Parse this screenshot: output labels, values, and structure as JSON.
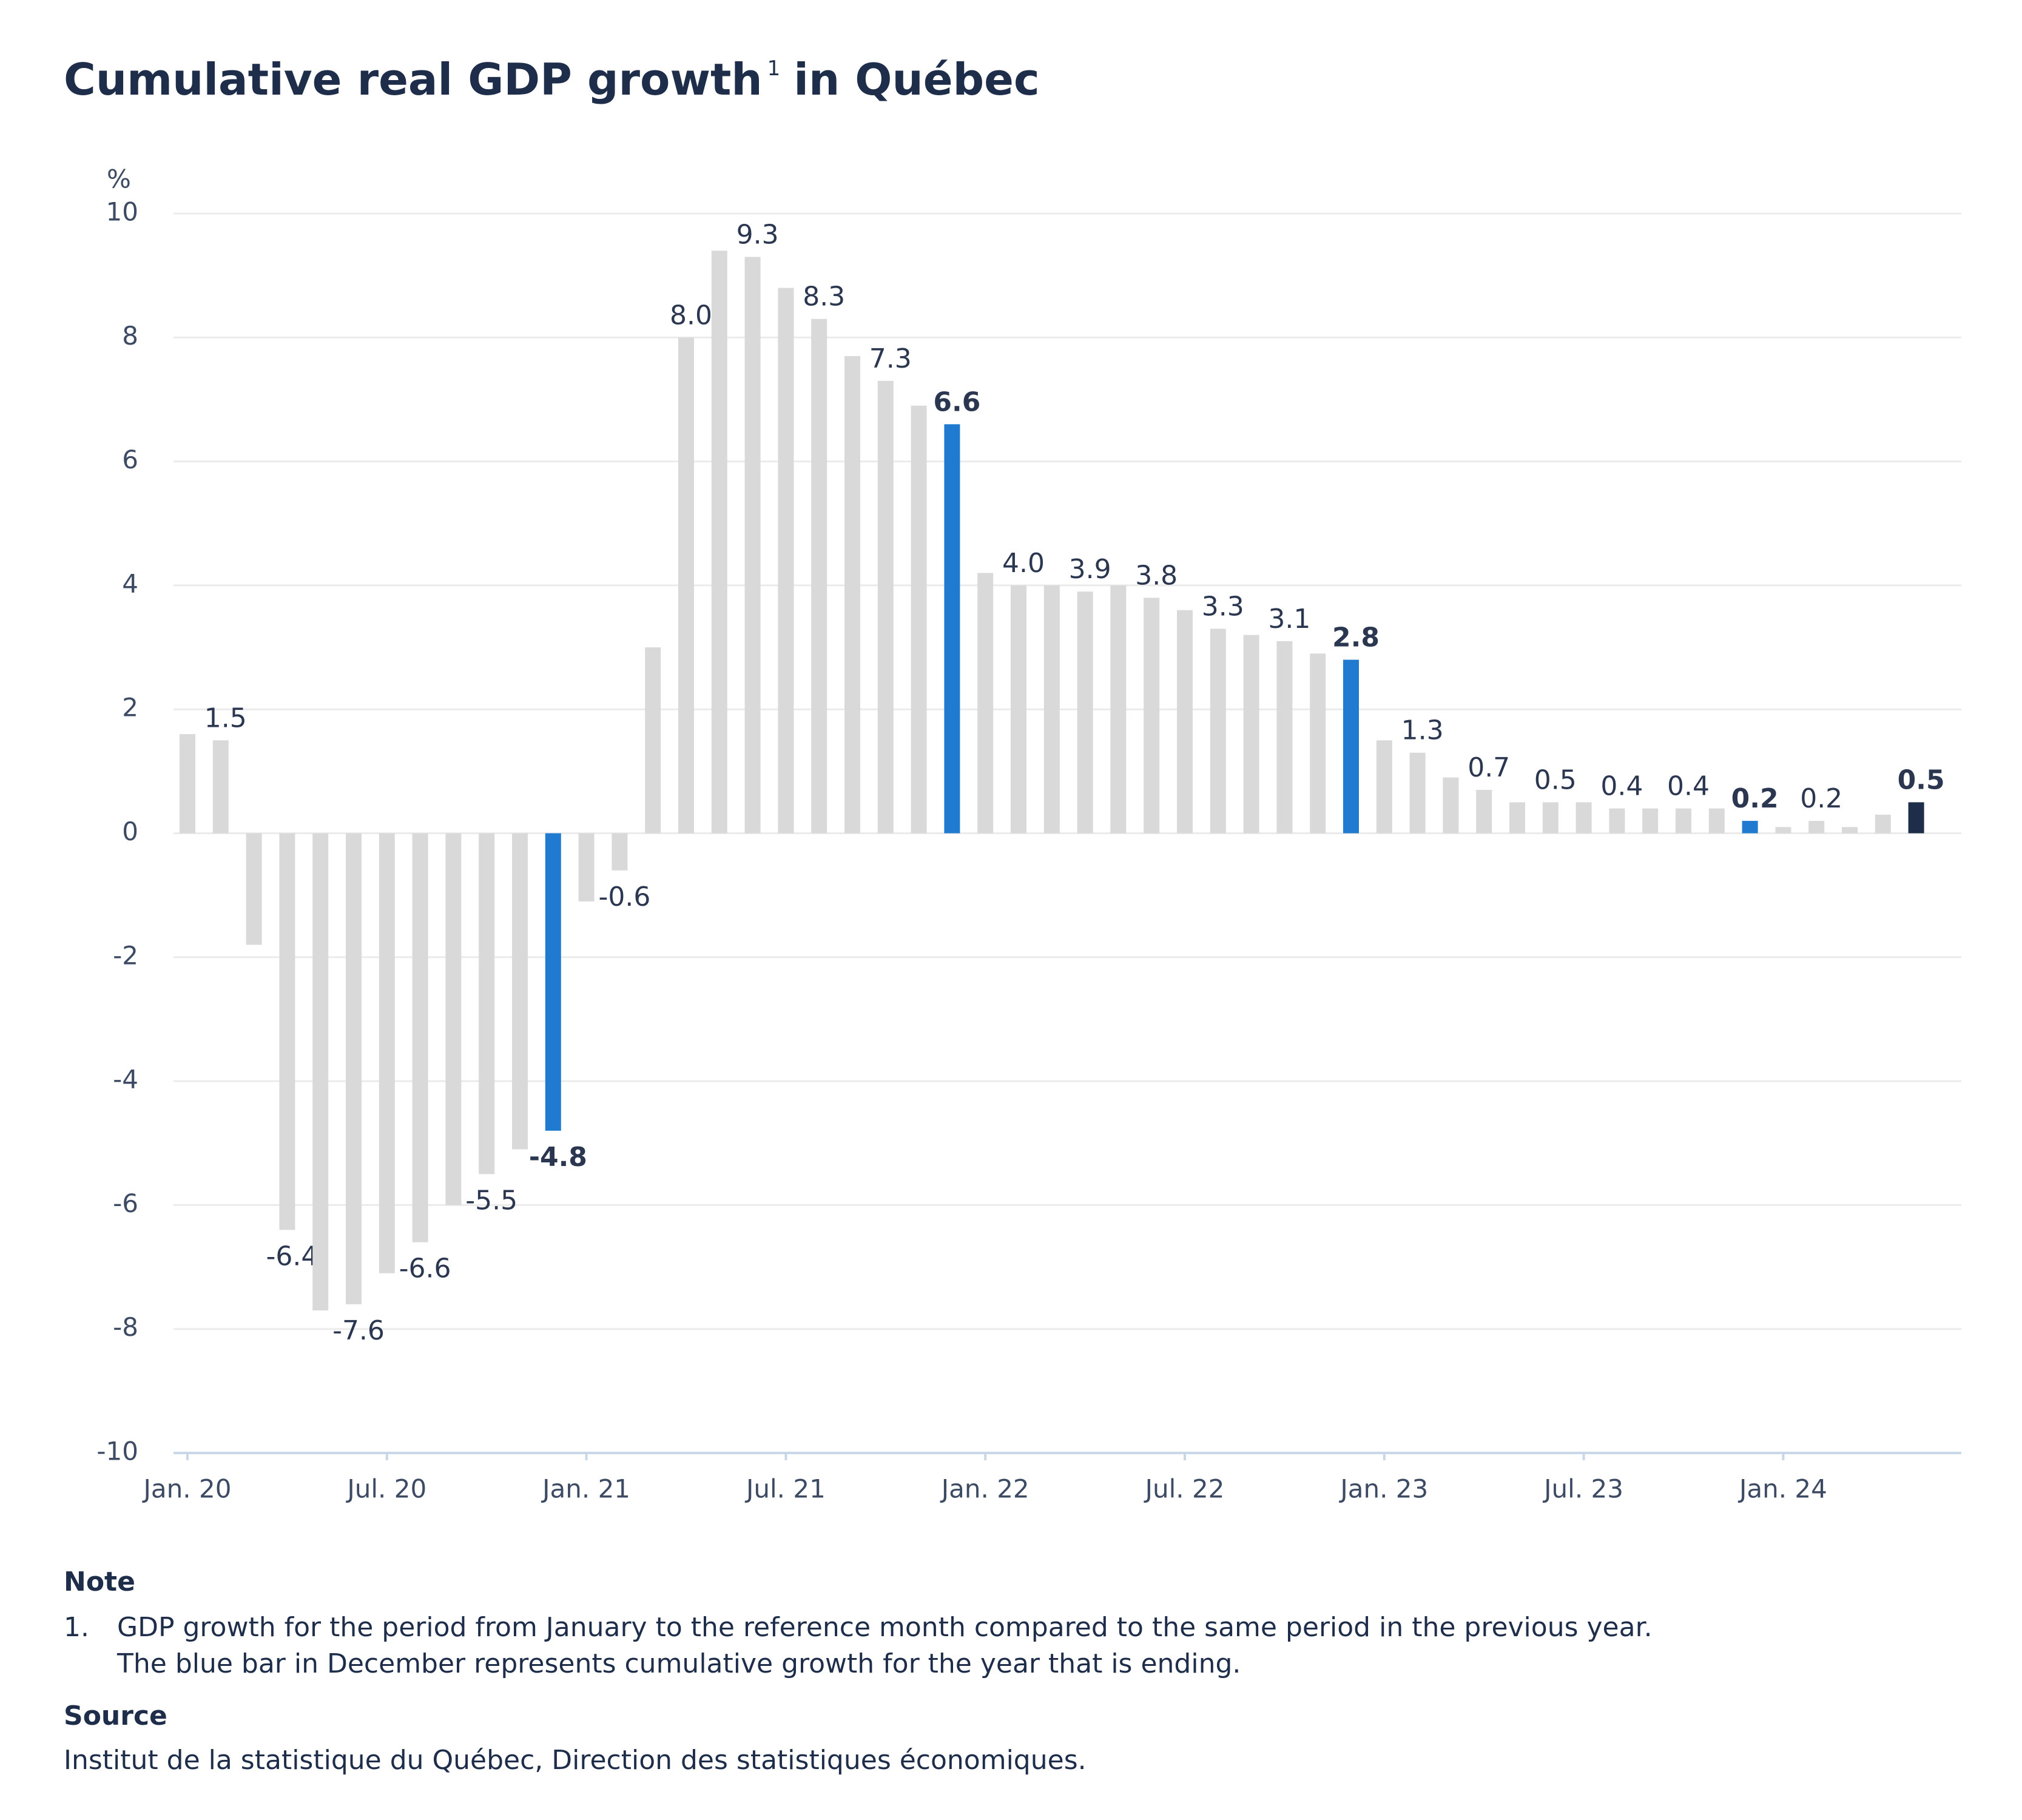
{
  "chart_data": {
    "type": "bar",
    "title": "Cumulative real GDP growth",
    "title_note_ref": "1",
    "title_suffix": "in Québec",
    "y_label": "%",
    "categories": [
      "Jan. 20",
      null,
      null,
      null,
      null,
      null,
      "Jul. 20",
      null,
      null,
      null,
      null,
      null,
      "Jan. 21",
      null,
      null,
      null,
      null,
      null,
      "Jul. 21",
      null,
      null,
      null,
      null,
      null,
      "Jan. 22",
      null,
      null,
      null,
      null,
      null,
      "Jul. 22",
      null,
      null,
      null,
      null,
      null,
      "Jan. 23",
      null,
      null,
      null,
      null,
      null,
      "Jul. 23",
      null,
      null,
      null,
      null,
      null,
      "Jan. 24",
      null,
      null,
      null,
      null
    ],
    "values": [
      1.6,
      1.5,
      -1.8,
      -6.4,
      -7.7,
      -7.6,
      -7.1,
      -6.6,
      -6.0,
      -5.5,
      -5.1,
      -4.8,
      -1.1,
      -0.6,
      3.0,
      8.0,
      9.4,
      9.3,
      8.8,
      8.3,
      7.7,
      7.3,
      6.9,
      6.6,
      4.2,
      4.0,
      4.0,
      3.9,
      4.0,
      3.8,
      3.6,
      3.3,
      3.2,
      3.1,
      2.9,
      2.8,
      1.5,
      1.3,
      0.9,
      0.7,
      0.5,
      0.5,
      0.5,
      0.4,
      0.4,
      0.4,
      0.4,
      0.2,
      0.1,
      0.2,
      0.1,
      0.3,
      0.5
    ],
    "value_labels": [
      null,
      "1.5",
      null,
      "-6.4",
      null,
      "-7.6",
      null,
      "-6.6",
      null,
      "-5.5",
      null,
      "-4.8",
      null,
      "-0.6",
      null,
      "8.0",
      null,
      "9.3",
      null,
      "8.3",
      null,
      "7.3",
      null,
      "6.6",
      null,
      "4.0",
      null,
      "3.9",
      null,
      "3.8",
      null,
      "3.3",
      null,
      "3.1",
      null,
      "2.8",
      null,
      "1.3",
      null,
      "0.7",
      null,
      "0.5",
      null,
      "0.4",
      null,
      "0.4",
      null,
      "0.2",
      null,
      "0.2",
      null,
      null,
      "0.5"
    ],
    "colors": [
      "#d9d9d9",
      "#d9d9d9",
      "#d9d9d9",
      "#d9d9d9",
      "#d9d9d9",
      "#d9d9d9",
      "#d9d9d9",
      "#d9d9d9",
      "#d9d9d9",
      "#d9d9d9",
      "#d9d9d9",
      "#1f7ad0",
      "#d9d9d9",
      "#d9d9d9",
      "#d9d9d9",
      "#d9d9d9",
      "#d9d9d9",
      "#d9d9d9",
      "#d9d9d9",
      "#d9d9d9",
      "#d9d9d9",
      "#d9d9d9",
      "#d9d9d9",
      "#1f7ad0",
      "#d9d9d9",
      "#d9d9d9",
      "#d9d9d9",
      "#d9d9d9",
      "#d9d9d9",
      "#d9d9d9",
      "#d9d9d9",
      "#d9d9d9",
      "#d9d9d9",
      "#d9d9d9",
      "#d9d9d9",
      "#1f7ad0",
      "#d9d9d9",
      "#d9d9d9",
      "#d9d9d9",
      "#d9d9d9",
      "#d9d9d9",
      "#d9d9d9",
      "#d9d9d9",
      "#d9d9d9",
      "#d9d9d9",
      "#d9d9d9",
      "#d9d9d9",
      "#1f7ad0",
      "#d9d9d9",
      "#d9d9d9",
      "#d9d9d9",
      "#d9d9d9",
      "#1e2d4a"
    ],
    "ylim": [
      -10,
      10
    ],
    "yticks": [
      -10,
      -8,
      -6,
      -4,
      -2,
      0,
      2,
      4,
      6,
      8,
      10
    ],
    "grid": true
  },
  "notes": {
    "note_heading": "Note",
    "items": [
      {
        "number": "1.",
        "lines": [
          "GDP growth for the period from January to the reference month compared to the same period in the previous year.",
          "The blue bar in December represents cumulative growth for the year that is ending."
        ]
      }
    ],
    "source_heading": "Source",
    "source": "Institut de la statistique du Québec, Direction des statistiques économiques."
  }
}
